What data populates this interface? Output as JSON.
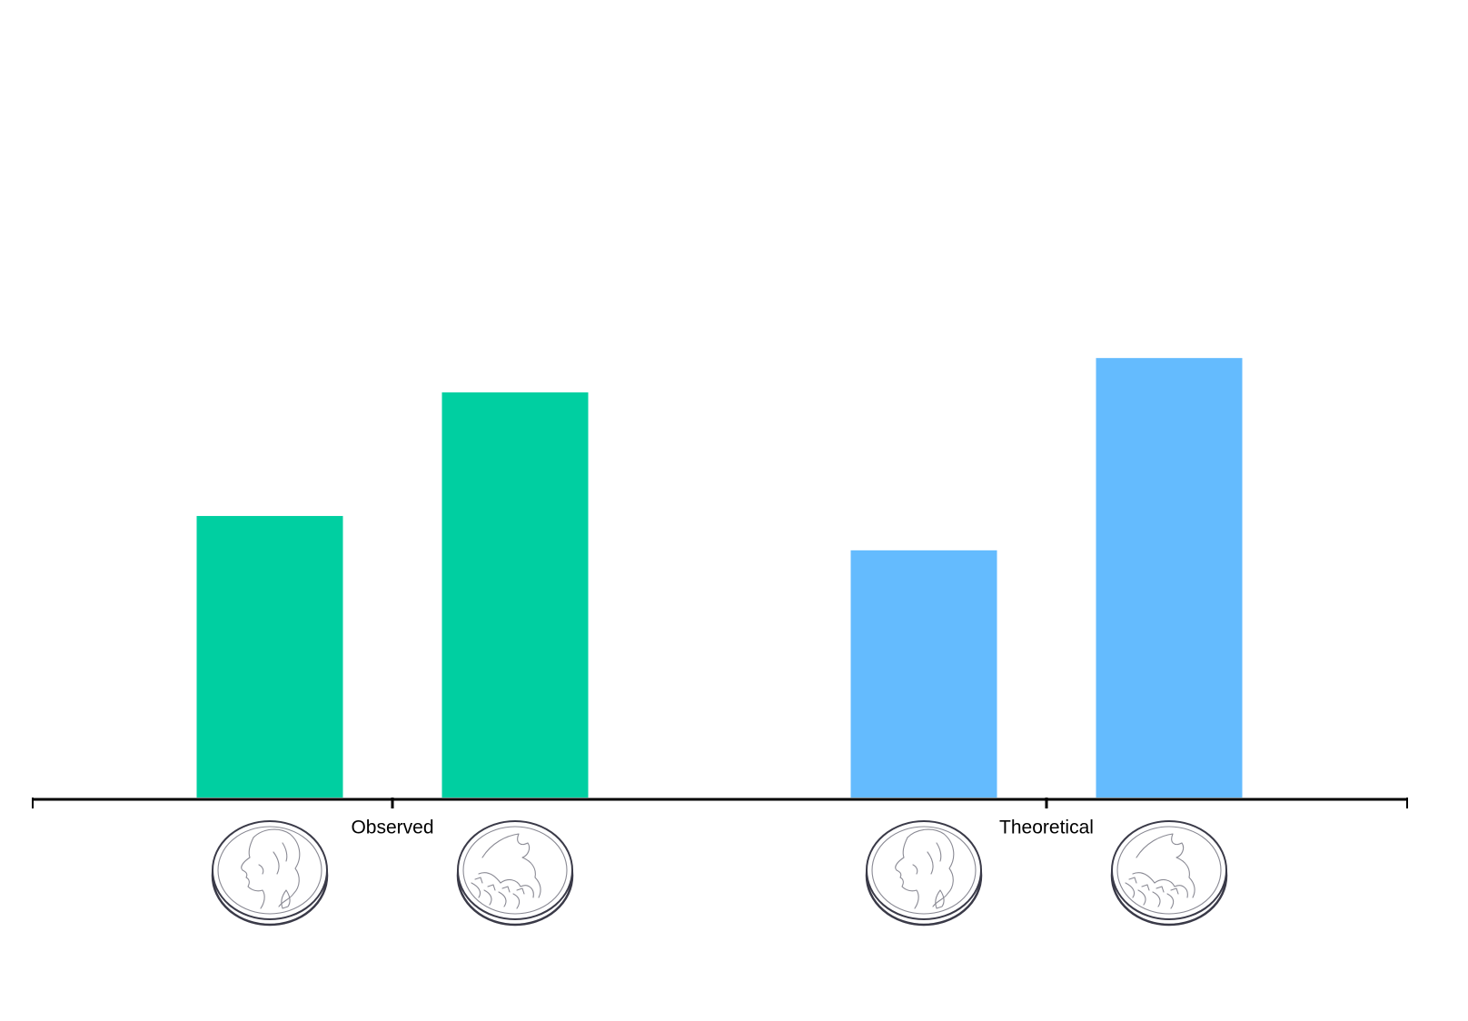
{
  "chart_data": {
    "type": "bar",
    "categories": [
      "Observed",
      "Theoretical"
    ],
    "series": [
      {
        "values": [
          0.41,
          0.59
        ]
      },
      {
        "values": [
          0.36,
          0.64
        ]
      }
    ],
    "bar_icons": [
      "coin-heads-icon",
      "coin-tails-icon"
    ],
    "ylim": [
      0,
      1
    ],
    "title": "",
    "xlabel": "",
    "ylabel": "",
    "grid": false,
    "colors": {
      "Observed": "#00cfa1",
      "Theoretical": "#64bbfe",
      "axis": "#000000"
    }
  }
}
